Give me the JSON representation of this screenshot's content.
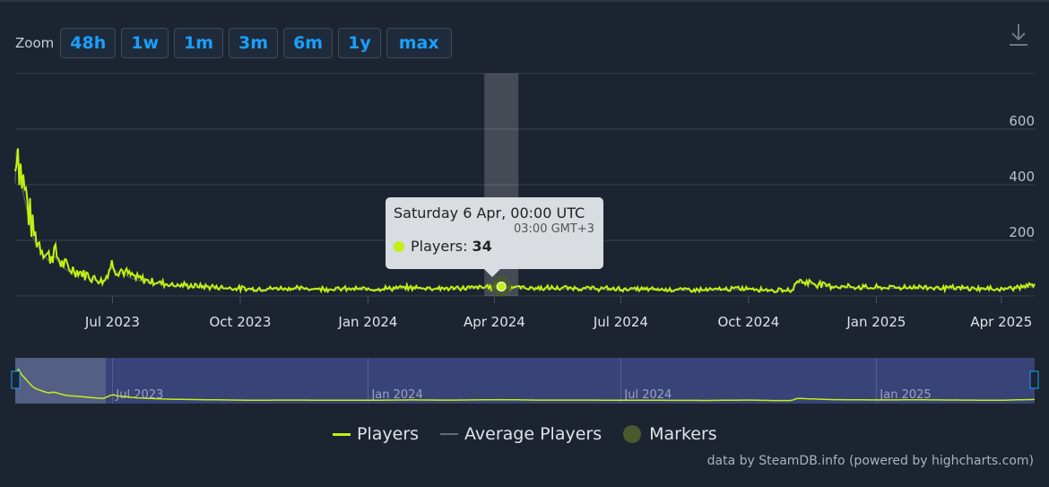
{
  "zoom": {
    "label": "Zoom",
    "buttons": [
      "48h",
      "1w",
      "1m",
      "3m",
      "6m",
      "1y",
      "max"
    ]
  },
  "tooltip": {
    "date": "Saturday 6 Apr, 00:00 UTC",
    "local_time": "03:00 GMT+3",
    "series_label": "Players:",
    "value": "34"
  },
  "legend": [
    "Players",
    "Average Players",
    "Markers"
  ],
  "credits": "data by SteamDB.info (powered by highcharts.com)",
  "colors": {
    "players": "#c3f013",
    "average": "#5f6b78",
    "markers": "#4a5a2c",
    "navigator_bg": "#384377",
    "background": "#1b2430"
  },
  "chart_data": {
    "type": "line",
    "series": [
      {
        "name": "Players",
        "x": [
          "2023-04-22",
          "2023-04-23",
          "2023-04-26",
          "2023-04-29",
          "2023-05-02",
          "2023-05-05",
          "2023-05-08",
          "2023-05-12",
          "2023-05-16",
          "2023-05-20",
          "2023-05-25",
          "2023-05-30",
          "2023-06-05",
          "2023-06-10",
          "2023-06-15",
          "2023-06-20",
          "2023-06-25",
          "2023-07-01",
          "2023-07-04",
          "2023-07-08",
          "2023-07-15",
          "2023-07-22",
          "2023-08-01",
          "2023-08-15",
          "2023-09-01",
          "2023-09-20",
          "2023-10-10",
          "2023-11-01",
          "2023-12-01",
          "2024-01-01",
          "2024-02-01",
          "2024-03-01",
          "2024-04-06",
          "2024-05-01",
          "2024-06-01",
          "2024-07-01",
          "2024-08-01",
          "2024-09-01",
          "2024-10-01",
          "2024-10-20",
          "2024-11-01",
          "2024-11-05",
          "2024-12-01",
          "2025-01-01",
          "2025-02-01",
          "2025-03-01",
          "2025-04-01",
          "2025-04-25"
        ],
        "values": [
          450,
          590,
          450,
          380,
          300,
          230,
          200,
          170,
          140,
          160,
          120,
          100,
          90,
          80,
          70,
          60,
          55,
          120,
          95,
          90,
          70,
          60,
          50,
          40,
          35,
          30,
          25,
          28,
          26,
          25,
          30,
          27,
          34,
          28,
          28,
          25,
          24,
          22,
          28,
          20,
          20,
          55,
          35,
          30,
          32,
          28,
          25,
          38
        ]
      }
    ],
    "markers": [
      {
        "x": "2024-04-06",
        "label": "Players",
        "value": 34
      }
    ],
    "x_ticks": [
      "Jul 2023",
      "Oct 2023",
      "Jan 2024",
      "Apr 2024",
      "Jul 2024",
      "Oct 2024",
      "Jan 2025",
      "Apr 2025"
    ],
    "y_ticks": [
      200,
      400,
      600
    ],
    "ylim": [
      0,
      800
    ],
    "xlim": [
      "2023-04-22",
      "2025-04-25"
    ],
    "navigator_ticks": [
      "Jul 2023",
      "Jan 2024",
      "Jul 2024",
      "Jan 2025"
    ],
    "grid": true,
    "legend_position": "bottom-center",
    "title": "",
    "xlabel": "",
    "ylabel": ""
  }
}
